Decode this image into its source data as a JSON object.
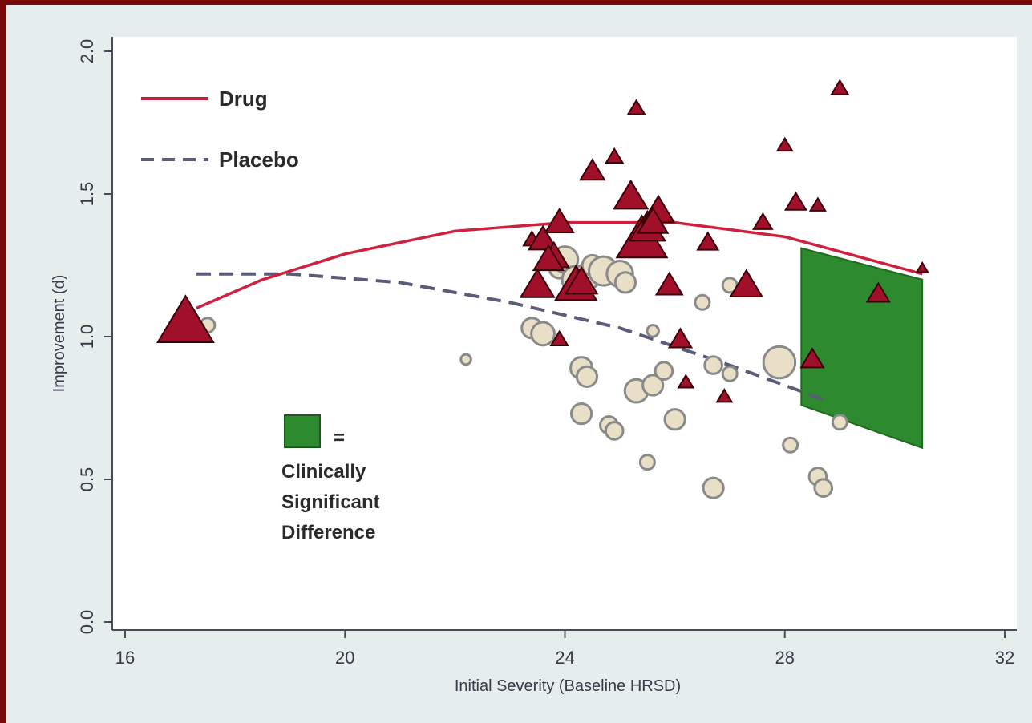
{
  "chart_data": {
    "type": "scatter",
    "xlabel": "Initial Severity (Baseline HRSD)",
    "ylabel": "Improvement (d)",
    "xlim": [
      16,
      32
    ],
    "ylim": [
      0.0,
      2.0
    ],
    "x_ticks": [
      "16",
      "20",
      "24",
      "28",
      "32"
    ],
    "y_ticks": [
      "0.0",
      "0.5",
      "1.0",
      "1.5",
      "2.0"
    ],
    "grid": false,
    "legend_position": "top-left",
    "colors": {
      "drug": "#a0102a",
      "placebo": "#5b5b7a",
      "placebo_fill": "#e8dfc6",
      "significant": "#2e8a2e"
    },
    "legend": [
      {
        "label": "Drug",
        "style": "solid"
      },
      {
        "label": "Placebo",
        "style": "dashed"
      }
    ],
    "annotation": {
      "symbol": "=",
      "lines": [
        "Clinically",
        "Significant",
        "Difference"
      ]
    },
    "series": [
      {
        "name": "Drug",
        "marker": "triangle",
        "curve": [
          [
            17.3,
            1.1
          ],
          [
            18.5,
            1.2
          ],
          [
            20,
            1.29
          ],
          [
            22,
            1.37
          ],
          [
            24,
            1.4
          ],
          [
            26,
            1.4
          ],
          [
            28,
            1.35
          ],
          [
            30.5,
            1.22
          ]
        ],
        "points": [
          [
            17.1,
            1.05,
            3.0
          ],
          [
            23.4,
            1.34,
            0.9
          ],
          [
            23.6,
            1.34,
            1.5
          ],
          [
            23.8,
            1.28,
            1.6
          ],
          [
            23.9,
            1.4,
            1.5
          ],
          [
            23.7,
            1.27,
            1.6
          ],
          [
            23.5,
            1.18,
            1.8
          ],
          [
            24.2,
            1.18,
            2.2
          ],
          [
            24.3,
            1.19,
            1.7
          ],
          [
            24.5,
            1.58,
            1.3
          ],
          [
            24.9,
            1.63,
            0.9
          ],
          [
            25.3,
            1.8,
            0.9
          ],
          [
            25.2,
            1.49,
            1.8
          ],
          [
            25.4,
            1.34,
            2.7
          ],
          [
            25.5,
            1.38,
            1.9
          ],
          [
            25.7,
            1.44,
            1.7
          ],
          [
            25.6,
            1.4,
            1.6
          ],
          [
            25.9,
            1.18,
            1.4
          ],
          [
            26.1,
            0.99,
            1.2
          ],
          [
            26.2,
            0.84,
            0.8
          ],
          [
            26.6,
            1.33,
            1.1
          ],
          [
            26.9,
            0.79,
            0.8
          ],
          [
            27.3,
            1.18,
            1.7
          ],
          [
            27.6,
            1.4,
            1.0
          ],
          [
            28.0,
            1.67,
            0.8
          ],
          [
            28.2,
            1.47,
            1.1
          ],
          [
            28.6,
            1.46,
            0.8
          ],
          [
            28.5,
            0.92,
            1.2
          ],
          [
            29.0,
            1.87,
            0.9
          ],
          [
            29.7,
            1.15,
            1.2
          ],
          [
            30.5,
            1.24,
            0.6
          ],
          [
            23.9,
            0.99,
            0.9
          ]
        ]
      },
      {
        "name": "Placebo",
        "marker": "circle",
        "curve": [
          [
            17.3,
            1.22
          ],
          [
            19,
            1.22
          ],
          [
            21,
            1.19
          ],
          [
            23,
            1.12
          ],
          [
            25,
            1.03
          ],
          [
            27,
            0.9
          ],
          [
            28.7,
            0.78
          ]
        ],
        "points": [
          [
            17.5,
            1.04,
            1.0
          ],
          [
            22.2,
            0.92,
            0.7
          ],
          [
            23.4,
            1.03,
            1.4
          ],
          [
            23.6,
            1.01,
            1.6
          ],
          [
            23.9,
            1.24,
            1.4
          ],
          [
            24.0,
            1.27,
            1.8
          ],
          [
            24.2,
            1.2,
            1.9
          ],
          [
            24.4,
            1.21,
            1.8
          ],
          [
            24.5,
            1.25,
            1.4
          ],
          [
            24.7,
            1.23,
            2.0
          ],
          [
            25.0,
            1.22,
            1.8
          ],
          [
            25.1,
            1.19,
            1.4
          ],
          [
            24.3,
            0.89,
            1.5
          ],
          [
            24.4,
            0.86,
            1.4
          ],
          [
            24.3,
            0.73,
            1.4
          ],
          [
            24.8,
            0.69,
            1.2
          ],
          [
            24.9,
            0.67,
            1.2
          ],
          [
            25.3,
            0.81,
            1.6
          ],
          [
            25.6,
            0.83,
            1.4
          ],
          [
            25.8,
            0.88,
            1.2
          ],
          [
            26.0,
            0.71,
            1.4
          ],
          [
            25.5,
            0.56,
            1.0
          ],
          [
            26.5,
            1.12,
            1.0
          ],
          [
            26.7,
            0.9,
            1.2
          ],
          [
            27.0,
            0.87,
            1.0
          ],
          [
            27.0,
            1.18,
            1.0
          ],
          [
            26.7,
            0.47,
            1.4
          ],
          [
            27.9,
            0.91,
            2.2
          ],
          [
            28.1,
            0.62,
            1.0
          ],
          [
            28.6,
            0.51,
            1.2
          ],
          [
            28.7,
            0.47,
            1.2
          ],
          [
            29.0,
            0.7,
            1.0
          ],
          [
            25.6,
            1.02,
            0.8
          ]
        ]
      }
    ],
    "significant_region": [
      [
        28.3,
        1.31
      ],
      [
        30.5,
        1.2
      ],
      [
        30.5,
        0.61
      ],
      [
        28.3,
        0.76
      ]
    ]
  }
}
